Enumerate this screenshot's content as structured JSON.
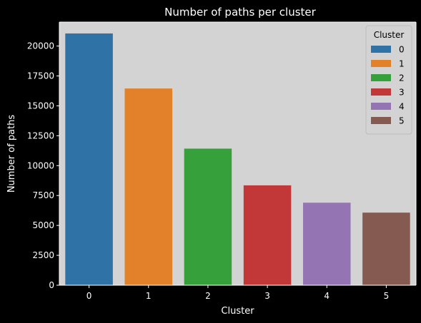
{
  "chart_data": {
    "type": "bar",
    "title": "Number of paths per cluster",
    "xlabel": "Cluster",
    "ylabel": "Number of paths",
    "categories": [
      "0",
      "1",
      "2",
      "3",
      "4",
      "5"
    ],
    "values": [
      21050,
      16450,
      11420,
      8350,
      6900,
      6070
    ],
    "ylim": [
      0,
      22000
    ],
    "yticks": [
      0,
      2500,
      5000,
      7500,
      10000,
      12500,
      15000,
      17500,
      20000
    ],
    "ytick_labels": [
      "0",
      "2500",
      "5000",
      "7500",
      "10000",
      "12500",
      "15000",
      "17500",
      "20000"
    ],
    "grid": false,
    "legend": {
      "title": "Cluster",
      "placement": "top-right",
      "entries": [
        "0",
        "1",
        "2",
        "3",
        "4",
        "5"
      ]
    },
    "colors": [
      "#2f72a6",
      "#e3812b",
      "#36a03b",
      "#c23838",
      "#9574b4",
      "#855b51"
    ],
    "background": "#000000",
    "plot_background": "#d3d3d3",
    "text_color": "#ffffff"
  }
}
